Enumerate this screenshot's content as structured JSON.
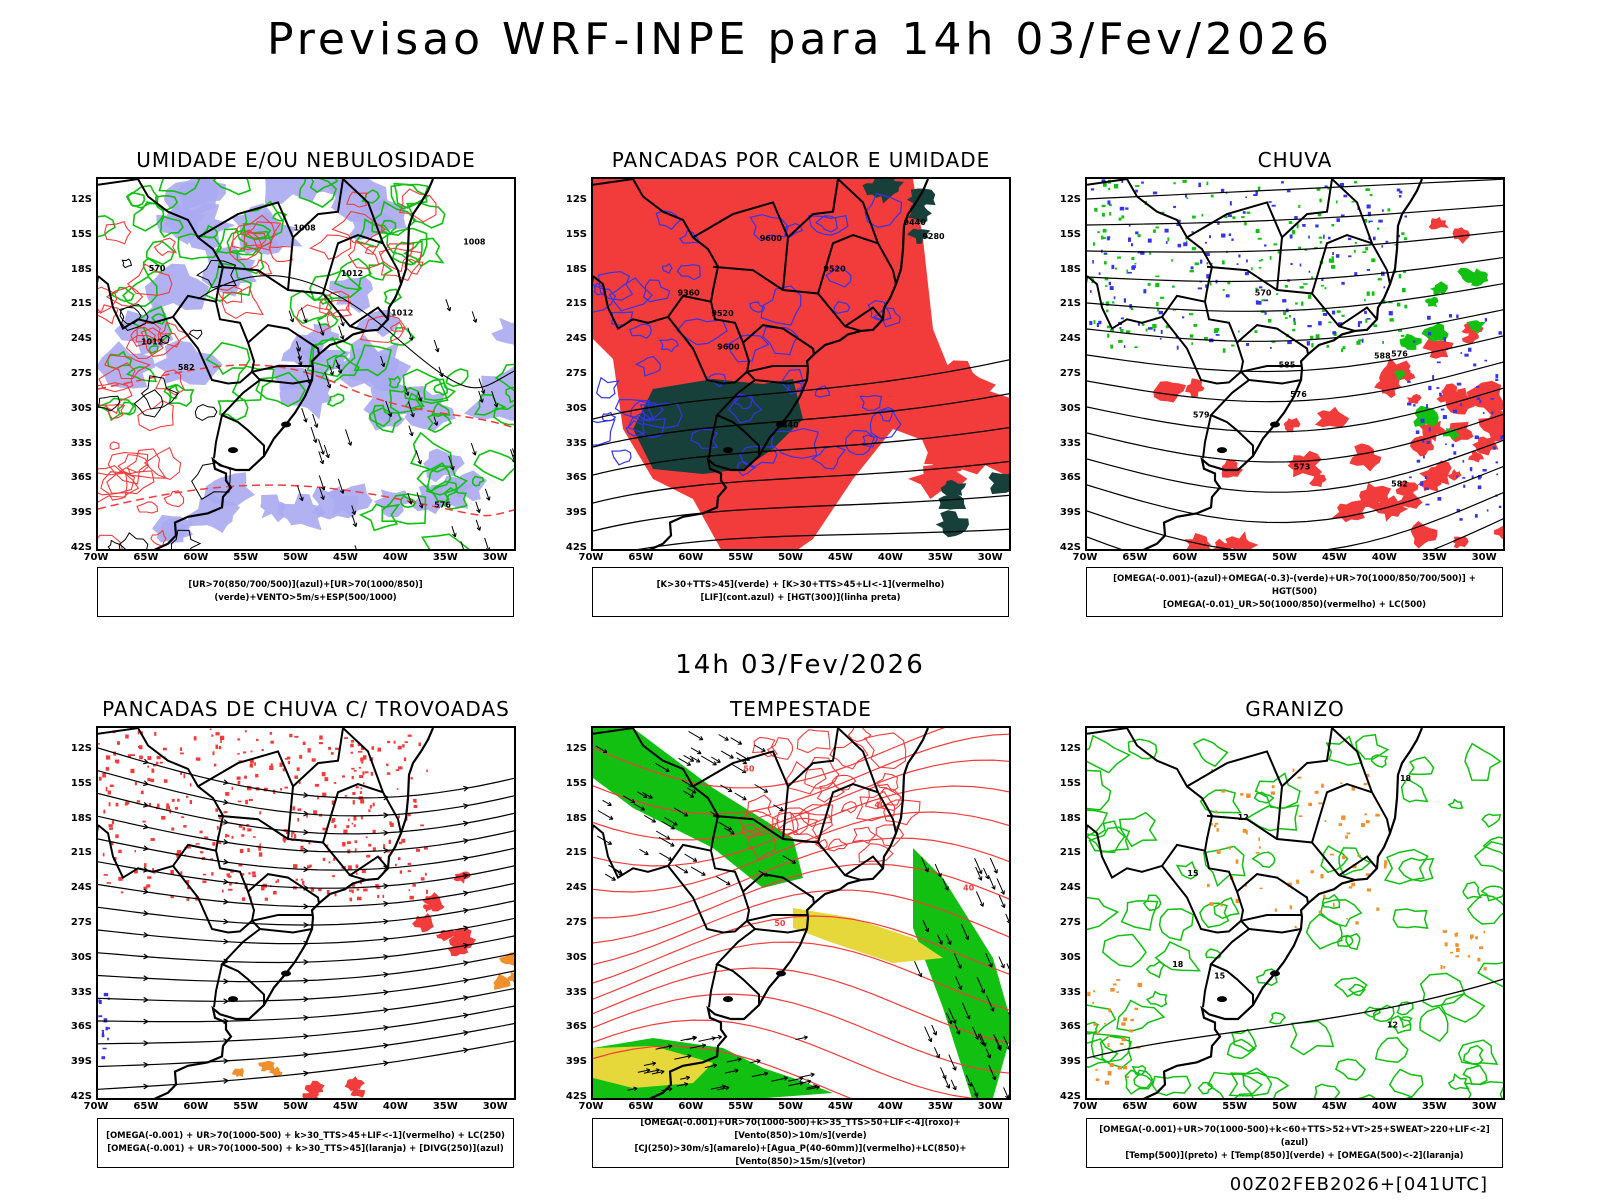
{
  "title": "Previsao WRF-INPE  para 14h 03/Fev/2026",
  "mid_title": "14h 03/Fev/2026",
  "footer": "00Z02FEB2026+[041UTC]",
  "lat_labels": [
    "12S",
    "15S",
    "18S",
    "21S",
    "24S",
    "27S",
    "30S",
    "33S",
    "36S",
    "39S",
    "42S"
  ],
  "lon_labels": [
    "70W",
    "65W",
    "60W",
    "55W",
    "50W",
    "45W",
    "40W",
    "35W",
    "30W"
  ],
  "panels": [
    {
      "title": "UMIDADE E/OU NEBULOSIDADE",
      "legend": [
        "[UR>70(850/700/500)](azul)+[UR>70(1000/850)](verde)+VENTO>5m/s+ESP(500/1000)"
      ],
      "contour_labels": [
        "1012",
        "1008",
        "1012",
        "1008",
        "570",
        "576",
        "582",
        "1012"
      ]
    },
    {
      "title": "PANCADAS POR CALOR E UMIDADE",
      "legend": [
        "[K>30+TTS>45](verde) + [K>30+TTS>45+LI<-1](vermelho)",
        "[LIF](cont.azul) + [HGT(300)](linha preta)"
      ],
      "contour_labels": [
        "9600",
        "9520",
        "9440",
        "9360",
        "9280",
        "9600",
        "9520",
        "9440"
      ]
    },
    {
      "title": "CHUVA",
      "legend": [
        "[OMEGA(-0.001)-(azul)+OMEGA(-0.3)-(verde)+UR>70(1000/850/700/500)] + HGT(500)",
        "[OMEGA(-0.01)_UR>50(1000/850)(vermelho) + LC(500)"
      ],
      "contour_labels": [
        "588",
        "582",
        "576",
        "576",
        "573",
        "570",
        "585",
        "579"
      ]
    },
    {
      "title": "PANCADAS DE CHUVA C/ TROVOADAS",
      "legend": [
        "[OMEGA(-0.001) + UR>70(1000-500) + k>30_TTS>45+LIF<-1](vermelho) + LC(250)",
        "[OMEGA(-0.001) + UR>70(1000-500) + k>30_TTS>45](laranja) + [DIVG(250)](azul)"
      ],
      "contour_labels": []
    },
    {
      "title": "TEMPESTADE",
      "legend": [
        "[OMEGA(-0.001)+UR>70(1000-500)+k>35_TTS>50+LIF<-4](roxo)+[Vento(850)>10m/s](verde)",
        "[CJ(250)>30m/s](amarelo)+[Agua_P(40-60mm)](vermelho)+LC(850)+[Vento(850)>15m/s](vetor)"
      ],
      "contour_labels": [
        "50",
        "40",
        "40",
        "50"
      ]
    },
    {
      "title": "GRANIZO",
      "legend": [
        "[OMEGA(-0.001)+UR>70(1000-500)+k<60+TTS>52+VT>25+SWEAT>220+LIF<-2](azul)",
        "[Temp(500)](preto) + [Temp(850)](verde) + [OMEGA(500)<-2](laranja)"
      ],
      "contour_labels": [
        "18",
        "15",
        "12",
        "12",
        "15",
        "18"
      ]
    }
  ],
  "colors": {
    "red": "#f23c3c",
    "green": "#11c011",
    "blue": "#3434e8",
    "lavender": "#aaaaf2",
    "dark": "#17403a",
    "yellow": "#e6d83a",
    "orange": "#f0902c"
  }
}
